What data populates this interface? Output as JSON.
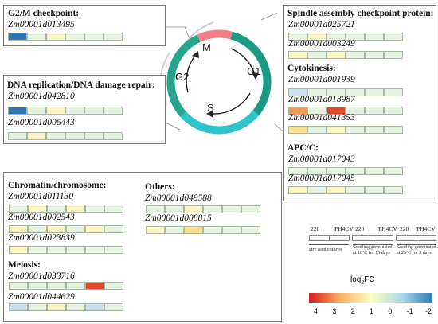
{
  "colors": {
    "v4": "#e5432a",
    "v3": "#f29a52",
    "v2": "#f9e08e",
    "v1": "#fbf4c6",
    "v0": "#e6f3e2",
    "vm1": "#c9e0ee",
    "vm2": "#2c77b3"
  },
  "cycle": {
    "labels": {
      "m": "M",
      "g1": "G1",
      "s": "S",
      "g2": "G2"
    },
    "colors": {
      "m": "#ef7f88",
      "g1": "#1b9b84",
      "s": "#2ec4c9",
      "g2": "#26a58c"
    }
  },
  "g2m": {
    "heading": "G2/M checkpoint:",
    "genes": [
      {
        "id": "Zm00001d013495",
        "cells": [
          "vm2",
          "v0",
          "v1",
          "v0",
          "v0",
          "v0"
        ]
      }
    ]
  },
  "dna": {
    "heading": "DNA replication/DNA damage repair:",
    "genes": [
      {
        "id": "Zm00001d042810",
        "cells": [
          "vm2",
          "v0",
          "v1",
          "v0",
          "v0",
          "v0"
        ]
      },
      {
        "id": "Zm00001d006443",
        "cells": [
          "v0",
          "v1",
          "v0",
          "v0",
          "v0",
          "v0"
        ]
      }
    ]
  },
  "right": {
    "spindle_heading": "Spindle assembly checkpoint protein:",
    "spindle_genes": [
      {
        "id": "Zm00001d025721",
        "cells": [
          "v0",
          "v1",
          "v0",
          "v0",
          "v0",
          "v0"
        ]
      },
      {
        "id": "Zm00001d003249",
        "cells": [
          "v1",
          "v0",
          "v1",
          "v0",
          "v0",
          "v0"
        ]
      }
    ],
    "cyto_heading": "Cytokinesis:",
    "cyto_genes": [
      {
        "id": "Zm00001d001939",
        "cells": [
          "vm1",
          "v0",
          "v0",
          "v0",
          "v0",
          "v0"
        ]
      },
      {
        "id": "Zm00001d018987",
        "cells": [
          "v3",
          "v0",
          "v4",
          "v0",
          "v0",
          "v0"
        ]
      },
      {
        "id": "Zm00001d041353",
        "cells": [
          "v2",
          "v0",
          "v1",
          "v0",
          "v0",
          "v0"
        ]
      }
    ],
    "apc_heading": "APC/C:",
    "apc_genes": [
      {
        "id": "Zm00001d017043",
        "cells": [
          "v0",
          "v0",
          "v0",
          "v0",
          "v0",
          "v0"
        ]
      },
      {
        "id": "Zm00001d017045",
        "cells": [
          "v1",
          "v0",
          "v1",
          "v0",
          "v0",
          "v0"
        ]
      }
    ]
  },
  "chromatin": {
    "heading": "Chromatin/chromosome:",
    "genes": [
      {
        "id": "Zm00001d011130",
        "cells": [
          "v0",
          "v1",
          "v0",
          "v1",
          "v0",
          "v0"
        ]
      },
      {
        "id": "Zm00001d002543",
        "cells": [
          "v1",
          "v0",
          "v1",
          "v0",
          "v1",
          "v0"
        ]
      },
      {
        "id": "Zm00001d023839",
        "cells": [
          "v1",
          "v0",
          "v0",
          "v0",
          "v0",
          "v0"
        ]
      }
    ],
    "meiosis_heading": "Meiosis:",
    "meiosis_genes": [
      {
        "id": "Zm00001d033716",
        "cells": [
          "v0",
          "v0",
          "v0",
          "v0",
          "v4",
          "v0"
        ]
      },
      {
        "id": "Zm00001d044629",
        "cells": [
          "vm1",
          "v0",
          "v1",
          "v0",
          "vm1",
          "v0"
        ]
      }
    ]
  },
  "others": {
    "heading": "Others:",
    "genes": [
      {
        "id": "Zm00001d049588",
        "cells": [
          "v0",
          "v0",
          "v1",
          "v0",
          "v0",
          "v0"
        ]
      },
      {
        "id": "Zm00001d008815",
        "cells": [
          "v1",
          "v0",
          "v2",
          "v0",
          "v0",
          "v0"
        ]
      }
    ]
  },
  "legend": {
    "labels": [
      "220",
      "PH4CV",
      "220",
      "PH4CV",
      "220",
      "PH4CV"
    ],
    "groups": [
      "Dry seed embryo",
      "Seedling germinated at 10°C for 15 days",
      "Seedling germinated at 25°C for 3 days"
    ]
  },
  "colorbar": {
    "title_main": "log",
    "title_sub": "2",
    "title_tail": "FC",
    "ticks": [
      "4",
      "3",
      "2",
      "1",
      "0",
      "-1",
      "-2"
    ],
    "stops": [
      "#d7191c",
      "#fdae61",
      "#ffffbf",
      "#abd9e9",
      "#2c7bb6"
    ]
  }
}
